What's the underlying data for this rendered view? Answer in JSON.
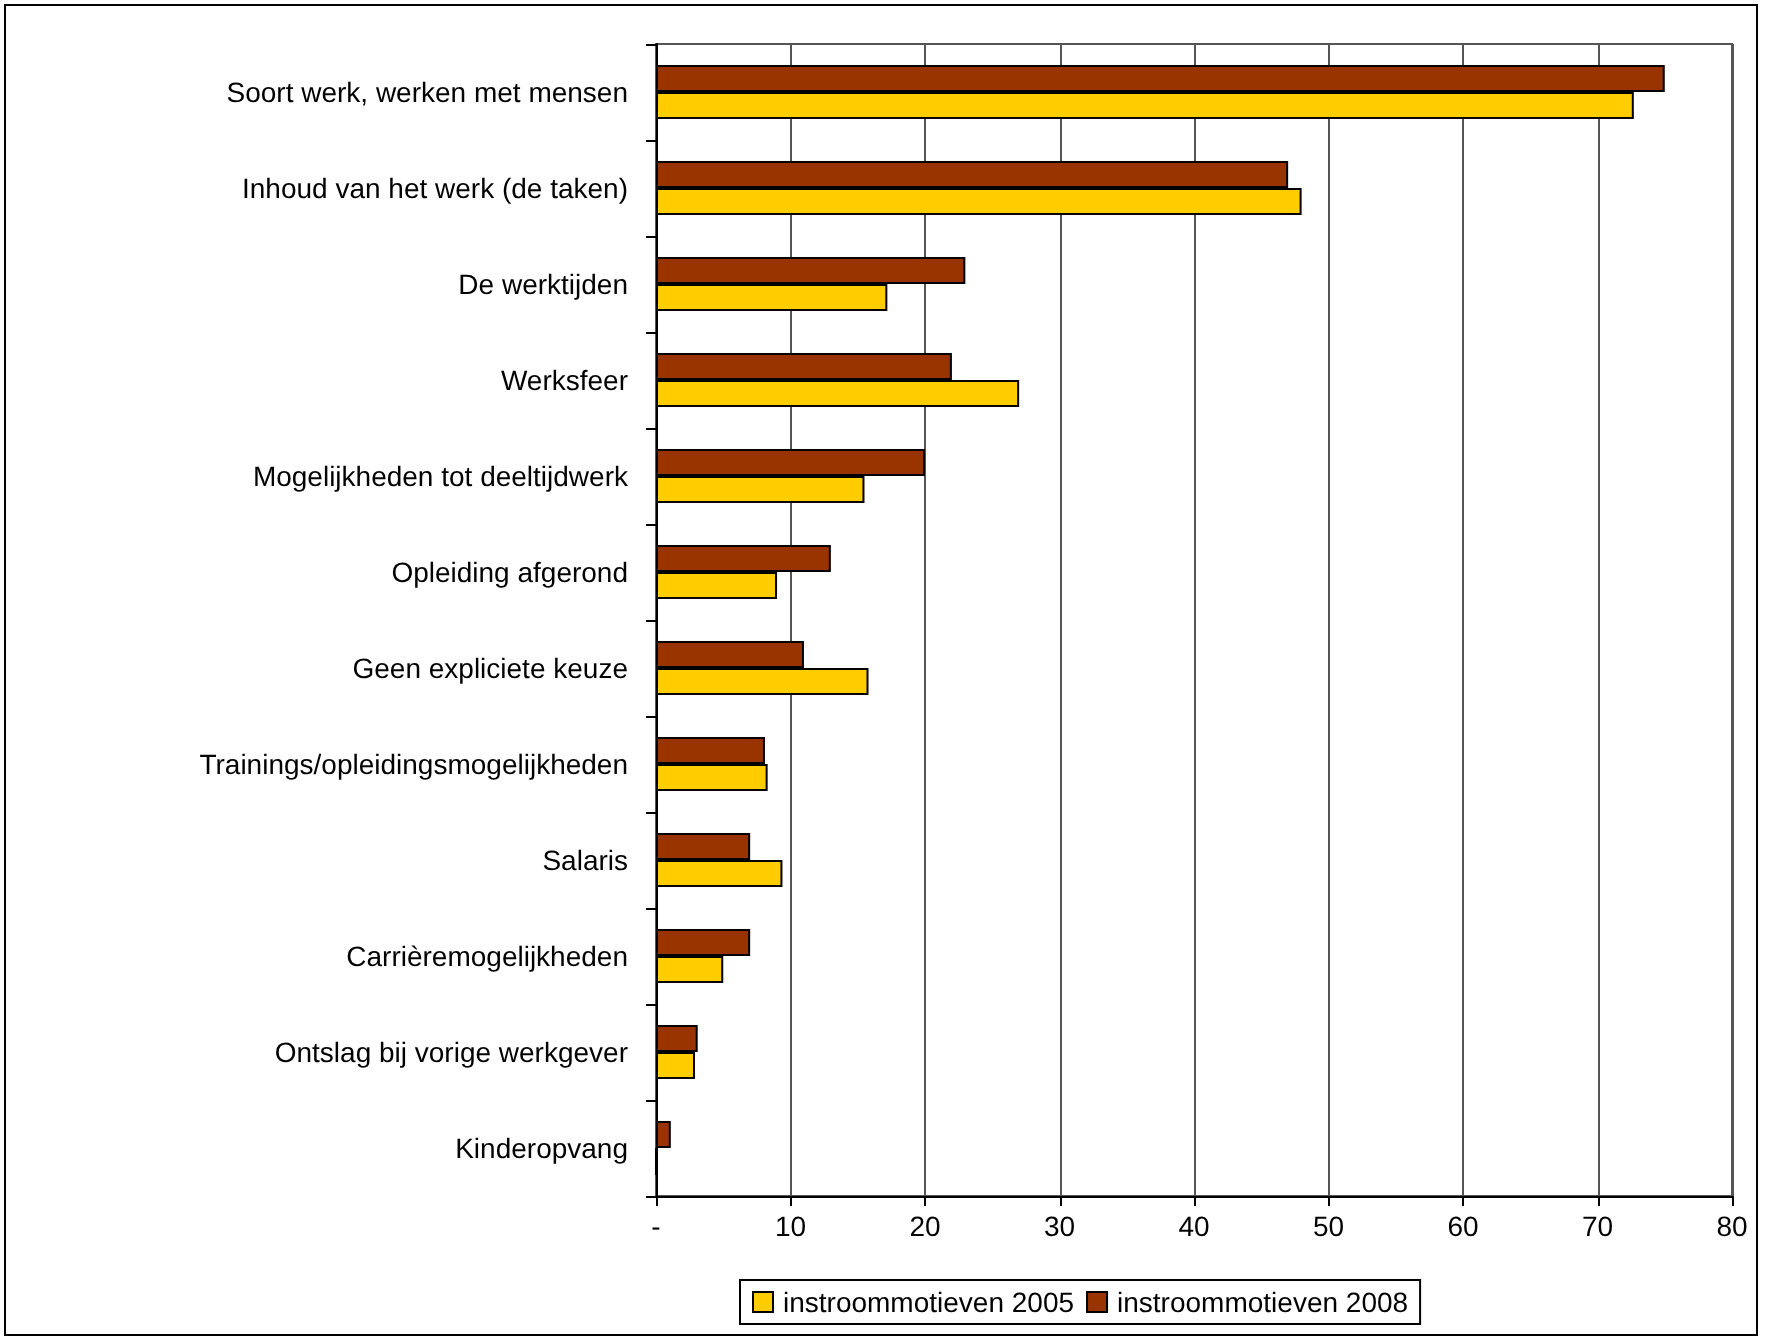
{
  "chart_data": {
    "type": "bar",
    "orientation": "horizontal",
    "categories": [
      "Soort werk, werken met mensen",
      "Inhoud van het werk (de taken)",
      "De werktijden",
      "Werksfeer",
      "Mogelijkheden tot deeltijdwerk",
      "Opleiding afgerond",
      "Geen expliciete keuze",
      "Trainings/opleidingsmogelijkheden",
      "Salaris",
      "Carrièremogelijkheden",
      "Ontslag bij vorige werkgever",
      "Kinderopvang"
    ],
    "series": [
      {
        "name": "instroommotieven 2005",
        "color": "#ffcc00",
        "values": [
          72.7,
          48,
          17.2,
          27,
          15.5,
          9,
          15.8,
          8.3,
          9.4,
          5,
          2.9,
          0
        ]
      },
      {
        "name": "instroommotieven 2008",
        "color": "#993300",
        "values": [
          75,
          47,
          23,
          22,
          20,
          13,
          11,
          8.1,
          7,
          7,
          3.1,
          1.1
        ]
      }
    ],
    "xlim": [
      0,
      80
    ],
    "xticks": [
      {
        "value": 0,
        "label": "-"
      },
      10,
      20,
      30,
      40,
      50,
      60,
      70,
      80
    ],
    "grid": "x",
    "legend": "bottom"
  }
}
